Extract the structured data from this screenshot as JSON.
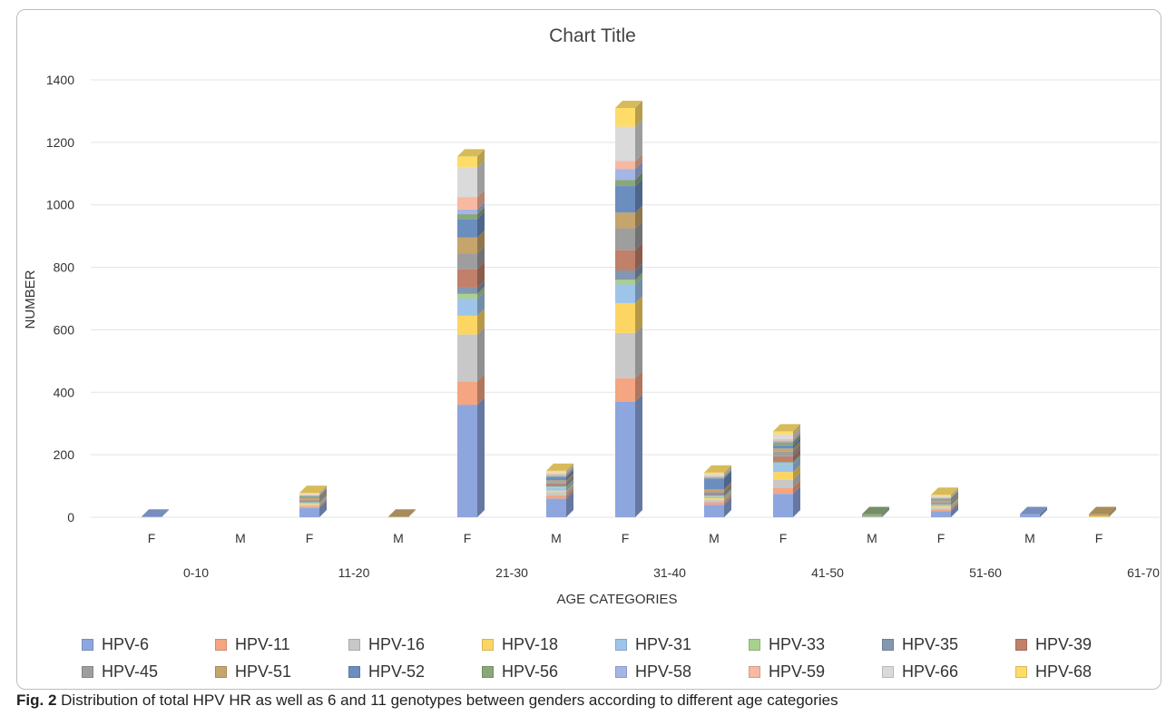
{
  "caption": {
    "label": "Fig. 2",
    "text": "Distribution of total HPV HR as well as 6 and 11 genotypes between genders according to different age categories"
  },
  "chart_data": {
    "type": "bar",
    "stacked": true,
    "title": "Chart Title",
    "xlabel": "AGE CATEGORIES",
    "ylabel": "NUMBER",
    "ylim": [
      0,
      1400
    ],
    "yticks": [
      0,
      200,
      400,
      600,
      800,
      1000,
      1200,
      1400
    ],
    "grid": true,
    "legend_position": "bottom",
    "groups": [
      "0-10",
      "11-20",
      "21-30",
      "31-40",
      "41-50",
      "51-60",
      "61-70"
    ],
    "genders": [
      "F",
      "M"
    ],
    "categories": [
      "0-10 F",
      "0-10 M",
      "11-20 F",
      "11-20 M",
      "21-30 F",
      "21-30 M",
      "31-40 F",
      "31-40 M",
      "41-50 F",
      "41-50 M",
      "51-60 F",
      "51-60 M",
      "61-70 F",
      "61-70 M"
    ],
    "series": [
      {
        "name": "HPV-6",
        "color": "#8ea6de",
        "values": [
          2,
          0,
          30,
          0,
          360,
          60,
          370,
          40,
          75,
          0,
          20,
          10,
          0,
          5
        ]
      },
      {
        "name": "HPV-11",
        "color": "#f4a582",
        "values": [
          0,
          0,
          5,
          0,
          75,
          10,
          75,
          8,
          20,
          0,
          5,
          0,
          0,
          0
        ]
      },
      {
        "name": "HPV-16",
        "color": "#c8c8c8",
        "values": [
          0,
          0,
          5,
          0,
          150,
          10,
          145,
          8,
          25,
          0,
          5,
          0,
          0,
          0
        ]
      },
      {
        "name": "HPV-18",
        "color": "#fdd563",
        "values": [
          0,
          0,
          3,
          0,
          60,
          5,
          95,
          5,
          25,
          0,
          5,
          0,
          3,
          0
        ]
      },
      {
        "name": "HPV-31",
        "color": "#9fc4ea",
        "values": [
          0,
          0,
          3,
          0,
          55,
          10,
          60,
          5,
          25,
          0,
          3,
          0,
          0,
          0
        ]
      },
      {
        "name": "HPV-33",
        "color": "#a9d18e",
        "values": [
          0,
          0,
          2,
          0,
          15,
          3,
          15,
          3,
          5,
          2,
          2,
          0,
          0,
          0
        ]
      },
      {
        "name": "HPV-35",
        "color": "#8496b0",
        "values": [
          0,
          0,
          3,
          0,
          20,
          5,
          30,
          5,
          5,
          0,
          3,
          0,
          0,
          0
        ]
      },
      {
        "name": "HPV-39",
        "color": "#c0806a",
        "values": [
          0,
          0,
          3,
          0,
          60,
          5,
          65,
          5,
          15,
          0,
          3,
          0,
          0,
          0
        ]
      },
      {
        "name": "HPV-45",
        "color": "#9e9e9e",
        "values": [
          0,
          0,
          3,
          0,
          50,
          5,
          70,
          5,
          15,
          5,
          3,
          0,
          2,
          0
        ]
      },
      {
        "name": "HPV-51",
        "color": "#c5a56b",
        "values": [
          0,
          0,
          5,
          2,
          50,
          5,
          50,
          5,
          10,
          0,
          5,
          0,
          5,
          0
        ]
      },
      {
        "name": "HPV-52",
        "color": "#6c8ebf",
        "values": [
          0,
          0,
          3,
          0,
          60,
          10,
          85,
          35,
          10,
          0,
          3,
          0,
          0,
          0
        ]
      },
      {
        "name": "HPV-56",
        "color": "#89a87a",
        "values": [
          0,
          0,
          3,
          0,
          15,
          3,
          20,
          3,
          10,
          3,
          3,
          0,
          0,
          0
        ]
      },
      {
        "name": "HPV-58",
        "color": "#a4b6e6",
        "values": [
          0,
          0,
          2,
          0,
          15,
          5,
          35,
          3,
          5,
          0,
          2,
          0,
          0,
          0
        ]
      },
      {
        "name": "HPV-59",
        "color": "#f7b9a0",
        "values": [
          0,
          0,
          2,
          0,
          40,
          3,
          25,
          3,
          5,
          0,
          2,
          0,
          0,
          0
        ]
      },
      {
        "name": "HPV-66",
        "color": "#dadada",
        "values": [
          0,
          0,
          3,
          0,
          95,
          5,
          110,
          5,
          15,
          0,
          3,
          0,
          0,
          0
        ]
      },
      {
        "name": "HPV-68",
        "color": "#fddc6a",
        "values": [
          0,
          0,
          3,
          0,
          35,
          5,
          60,
          5,
          10,
          0,
          5,
          0,
          0,
          0
        ]
      }
    ]
  }
}
